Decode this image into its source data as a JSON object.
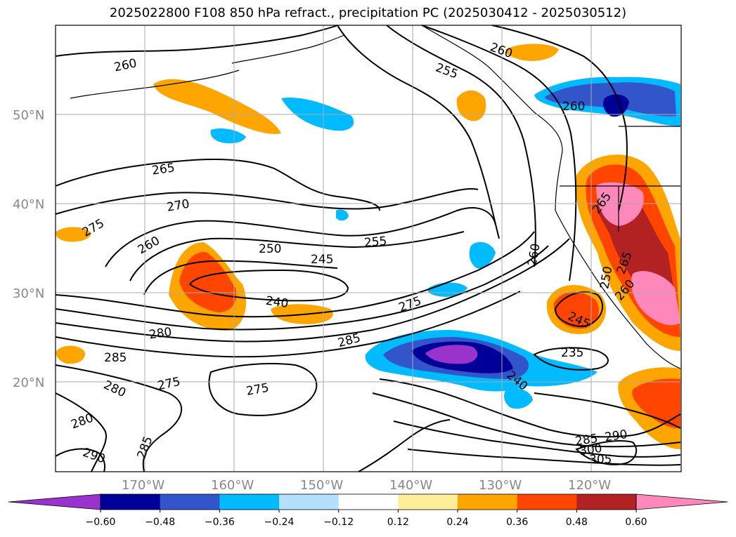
{
  "title": "2025022800 F108 850 hPa refract., precipitation PC (2025030412 - 2025030512)",
  "lat_labels": [
    "20°N",
    "30°N",
    "40°N",
    "50°N"
  ],
  "lon_labels": [
    "170°W",
    "160°W",
    "150°W",
    "140°W",
    "130°W",
    "120°W"
  ],
  "contour_labels": [
    "260",
    "265",
    "270",
    "275",
    "260",
    "250",
    "245",
    "240",
    "280",
    "285",
    "280",
    "275",
    "280",
    "290",
    "285",
    "255",
    "260",
    "255",
    "275",
    "285",
    "260",
    "235",
    "240",
    "245",
    "250",
    "265",
    "260",
    "285",
    "300",
    "305",
    "290",
    "275",
    "265",
    "260"
  ],
  "colorbar": {
    "colors": [
      "#9933cc",
      "#000099",
      "#3355cc",
      "#00bbff",
      "#b3e0ff",
      "#ffffff",
      "#ffee99",
      "#ffa500",
      "#ff4500",
      "#b22222",
      "#ff88bb"
    ],
    "tick_labels": [
      "−0.60",
      "−0.48",
      "−0.36",
      "−0.24",
      "−0.12",
      "0.12",
      "0.24",
      "0.36",
      "0.48",
      "0.60"
    ]
  }
}
